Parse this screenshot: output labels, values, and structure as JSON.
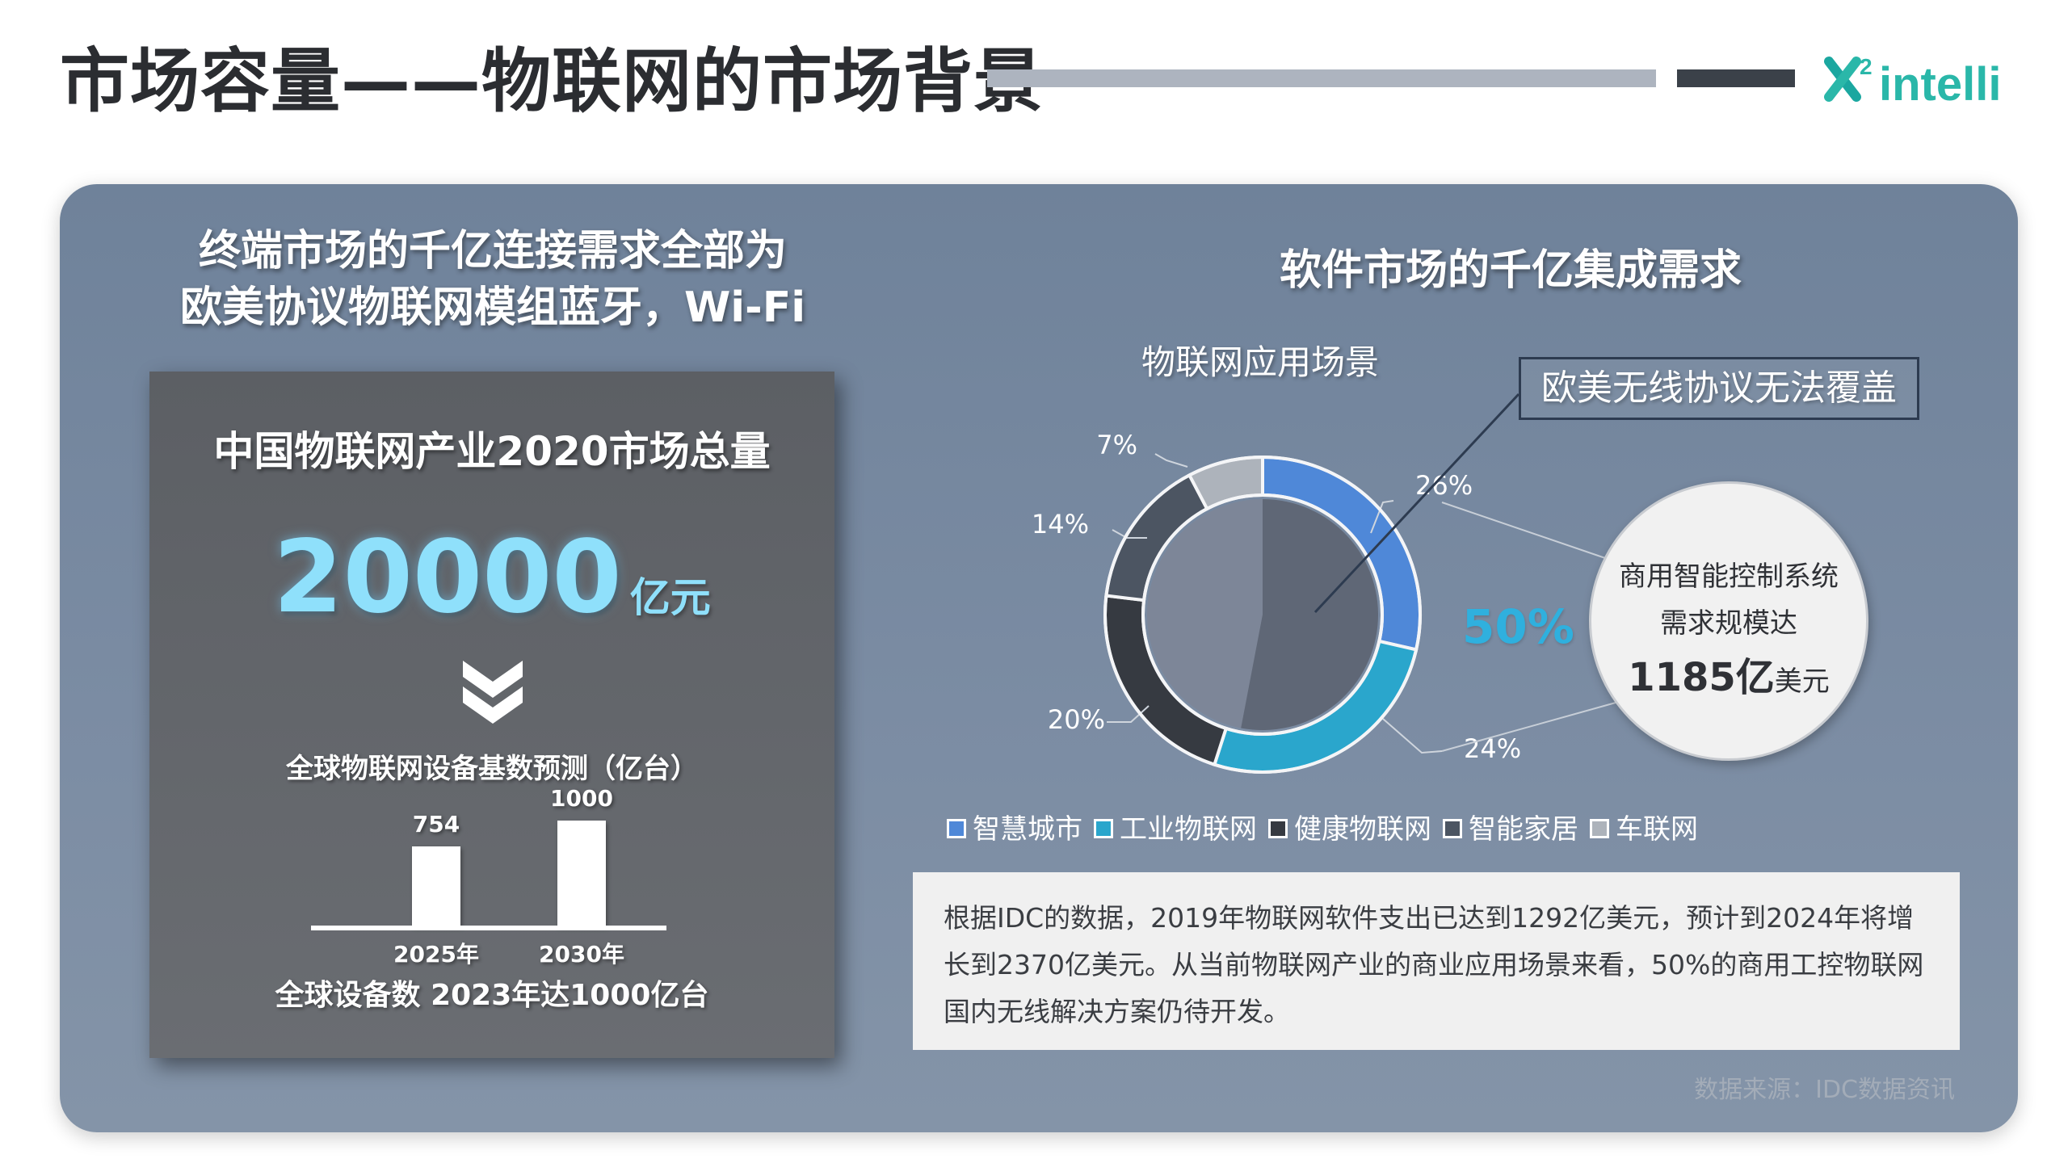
{
  "header": {
    "title": "市场容量——物联网的市场背景",
    "logo_text": "intelli",
    "logo_superscript": "2"
  },
  "left": {
    "heading_line1": "终端市场的千亿连接需求全部为",
    "heading_line2": "欧美协议物联网模组蓝牙，Wi-Fi",
    "card": {
      "title": "中国物联网产业2020市场总量",
      "big_number": "20000",
      "big_number_unit": "亿元",
      "forecast_title": "全球物联网设备基数预测（亿台）",
      "bars": [
        {
          "year": "2025年",
          "value": 754,
          "label": "754"
        },
        {
          "year": "2030年",
          "value": 1000,
          "label": "1000"
        }
      ],
      "footnote": "全球设备数 2023年达1000亿台"
    }
  },
  "right": {
    "heading": "软件市场的千亿集成需求",
    "callout": "欧美无线协议无法覆盖",
    "big_percent": "50%",
    "stat_circle": {
      "line1": "商用智能控制系统",
      "line2": "需求规模达",
      "value": "1185亿",
      "unit": "美元"
    },
    "info_text": "根据IDC的数据，2019年物联网软件支出已达到1292亿美元，预计到2024年将增长到2370亿美元。从当前物联网产业的商业应用场景来看，50%的商用工控物联网国内无线解决方案仍待开发。",
    "source": "数据来源：IDC数据资讯"
  },
  "colors": {
    "smart_city": "#4f88d8",
    "industrial": "#2aa6cc",
    "health": "#363a41",
    "smart_home": "#4c5562",
    "vehicle": "#adb3bb",
    "inner_pie": "#5f6776",
    "accent_teal": "#2ab7a9"
  },
  "chart_data": [
    {
      "type": "pie",
      "title": "物联网应用场景",
      "categories": [
        "智慧城市",
        "工业物联网",
        "健康物联网",
        "智能家居",
        "车联网"
      ],
      "values": [
        26,
        24,
        20,
        14,
        7
      ],
      "labels": [
        "26%",
        "24%",
        "20%",
        "14%",
        "7%"
      ],
      "legend": "bottom"
    },
    {
      "type": "bar",
      "title": "全球物联网设备基数预测（亿台）",
      "categories": [
        "2025年",
        "2030年"
      ],
      "values": [
        754,
        1000
      ]
    }
  ]
}
